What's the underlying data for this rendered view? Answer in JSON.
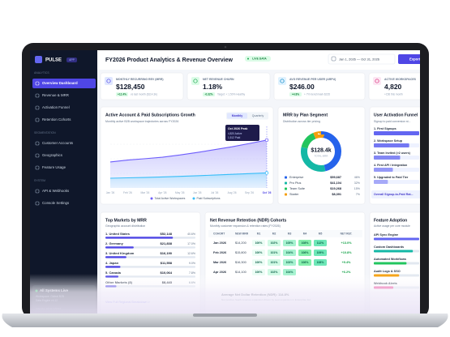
{
  "sidebar": {
    "brand": "PULSE",
    "badge": "APP",
    "sections": [
      {
        "title": "ANALYTICS",
        "items": [
          "Overview Dashboard",
          "Revenue & MRR",
          "Activation Funnel",
          "Retention Cohorts"
        ]
      },
      {
        "title": "SEGMENTATION",
        "items": [
          "Customer Accounts",
          "Geographics",
          "Feature Usage"
        ]
      },
      {
        "title": "SYSTEM",
        "items": [
          "API & Webhooks",
          "Console Settings"
        ]
      }
    ],
    "status": {
      "title": "All Systems Live",
      "lines": [
        "Workspace: Global B2B",
        "Data Engine v4.12"
      ],
      "footer": "Latency: 12ms | v5.8.2"
    }
  },
  "header": {
    "title": "FY2026 Product Analytics & Revenue Overview",
    "badge": "LIVE DATA",
    "date_range": "Jan 1, 2026 — Oct 31, 2026",
    "export": "Export"
  },
  "kpis": [
    {
      "label": "MONTHLY RECURRING REV (MRR)",
      "value": "$128,450",
      "delta": "+12.4%",
      "note": "vs last month ($114.3k)"
    },
    {
      "label": "NET REVENUE CHURN",
      "value": "1.18%",
      "delta": "-0.32%",
      "note": "Target: < 1.50% Healthy"
    },
    {
      "label": "AVG REVENUE PER USER (ARPU)",
      "value": "$246.00",
      "delta": "+4.8%",
      "note": "+ 7% benchmark $235"
    },
    {
      "label": "ACTIVE WORKSPACES",
      "value": "4,820",
      "note": "+156 this month"
    }
  ],
  "growth_chart": {
    "title": "Active Account & Paid Subscriptions Growth",
    "subtitle": "Monthly active B2B workspace trajectories across FY2026",
    "toggles": [
      "Monthly",
      "Quarterly"
    ],
    "x": [
      "Jan '26",
      "Feb '26",
      "Mar '26",
      "Apr '26",
      "May '26",
      "Jun '26",
      "Jul '26",
      "Aug '26",
      "Sep '26",
      "Oct '26"
    ],
    "series": [
      {
        "name": "Total Active Workspaces",
        "color": "#6d5dfc",
        "values": [
          2620,
          2810,
          2950,
          3100,
          3320,
          3580,
          3860,
          4150,
          4480,
          4820
        ]
      },
      {
        "name": "Paid Subscriptions",
        "color": "#38bdf8",
        "values": [
          980,
          1020,
          1060,
          1110,
          1170,
          1230,
          1300,
          1370,
          1440,
          1512
        ]
      }
    ],
    "tooltip": {
      "title": "Oct 2026 Peak",
      "lines": [
        "4,820 Active",
        "1,512 Paid"
      ]
    }
  },
  "plan_segments": {
    "title": "MRR by Plan Segment",
    "subtitle": "Distribution across tier pricing",
    "center_value": "$128.4k",
    "center_label": "TOTAL MRR",
    "segments": [
      {
        "name": "Enterprise",
        "color": "#2563eb",
        "mrr": 59687,
        "mrr_label": "$59,687",
        "share_label": "46%"
      },
      {
        "name": "Pro Plus",
        "color": "#14b8a6",
        "mrr": 41104,
        "mrr_label": "$41,104",
        "share_label": "32%"
      },
      {
        "name": "Team Suite",
        "color": "#22c55e",
        "mrr": 19268,
        "mrr_label": "$19,268",
        "share_label": "15%"
      },
      {
        "name": "Starter",
        "color": "#f59e0b",
        "mrr": 8391,
        "mrr_label": "$8,391",
        "share_label": "7%"
      }
    ]
  },
  "funnel": {
    "title": "User Activation Funnel",
    "subtitle": "Signup to paid conversion st...",
    "steps": [
      {
        "name": "1. First Signups",
        "value": 100
      },
      {
        "name": "2. Workspace Setup",
        "value": 78
      },
      {
        "name": "3. Team Invited (>2 users)",
        "value": 58
      },
      {
        "name": "4. First API / Integration",
        "value": 42
      },
      {
        "name": "5. Upgraded to Paid Tier",
        "value": 31
      }
    ],
    "summary": "Overall Signup-to-Paid Rat..."
  },
  "markets": {
    "title": "Top Markets by MRR",
    "subtitle": "Geographic account distribution",
    "rows": [
      {
        "name": "1. United States",
        "mrr_label": "$52,148",
        "share": 40.6,
        "share_label": "40.6%"
      },
      {
        "name": "2. Germany",
        "mrr_label": "$21,838",
        "share": 17.0,
        "share_label": "17.0%"
      },
      {
        "name": "3. United Kingdom",
        "mrr_label": "$16,190",
        "share": 12.6,
        "share_label": "12.6%"
      },
      {
        "name": "4. Japan",
        "mrr_label": "$11,558",
        "share": 9.0,
        "share_label": "9.0%"
      },
      {
        "name": "5. Canada",
        "mrr_label": "$10,064",
        "share": 7.8,
        "share_label": "7.8%"
      },
      {
        "name": "Other Markets (8)",
        "mrr_label": "$8,443",
        "share": 6.6,
        "share_label": "6.6%"
      }
    ],
    "link": "View Full Regional Breakdown >"
  },
  "cohorts": {
    "title": "Net Revenue Retention (NDR) Cohorts",
    "subtitle": "Monthly customer expansion & retention rates (FY2026)",
    "columns": [
      "COHORT",
      "NEW MRR",
      "M1",
      "M2",
      "M3",
      "M4",
      "M5",
      "NET RET."
    ],
    "rows": [
      {
        "cohort": "Jan 2026",
        "mrr": "$14,200",
        "months": [
          "100%",
          "102%",
          "105%",
          "108%",
          "112%"
        ],
        "net": "+13.0%"
      },
      {
        "cohort": "Feb 2026",
        "mrr": "$15,800",
        "months": [
          "100%",
          "101%",
          "104%",
          "106%",
          "109%"
        ],
        "net": "+10.8%"
      },
      {
        "cohort": "Mar 2026",
        "mrr": "$16,300",
        "months": [
          "100%",
          "101%",
          "103%",
          "106%",
          "108%"
        ],
        "net": "+9.4%"
      },
      {
        "cohort": "Apr 2026",
        "mrr": "$14,100",
        "months": [
          "100%",
          "102%",
          "104%"
        ],
        "net": "+6.2%"
      }
    ],
    "footer_title": "Average Net Dollar Retention (NDR): 114.8%",
    "footer_note": "Net positive SaaS revenue expansion driven by seat expansion in Enterprise tier."
  },
  "features": {
    "title": "Feature Adoption",
    "subtitle": "Active usage per core module",
    "items": [
      {
        "name": "API Sync Engine",
        "value": 86
      },
      {
        "name": "Custom Dashboards",
        "value": 74
      },
      {
        "name": "Automated Workflows",
        "value": 62
      },
      {
        "name": "Audit Logs & SSO",
        "value": 48
      },
      {
        "name": "Webhook Alerts",
        "value": 37
      }
    ]
  }
}
